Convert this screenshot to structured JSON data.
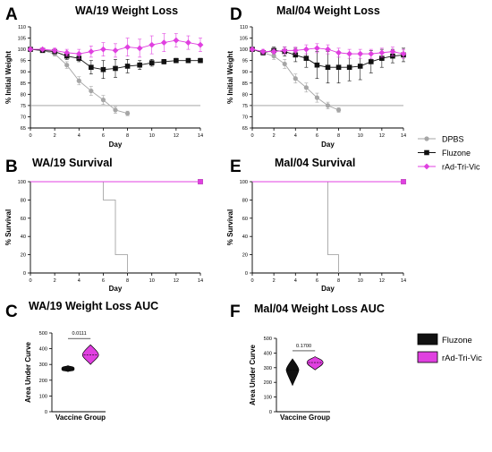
{
  "colors": {
    "dpbs": "#a6a6a6",
    "fluzone": "#111111",
    "radtrivic": "#e040e0",
    "cutoff": "#999999"
  },
  "legend_top": [
    "DPBS",
    "Fluzone",
    "rAd-Tri-Vic"
  ],
  "legend_bottom": [
    "Fluzone",
    "rAd-Tri-Vic"
  ],
  "chart_data": [
    {
      "id": "A",
      "type": "line",
      "panel_letter": "A",
      "title": "WA/19 Weight Loss",
      "xlabel": "Day",
      "ylabel": "% Initial Weight",
      "xlim": [
        0,
        14
      ],
      "ylim": [
        65,
        110
      ],
      "xticks": [
        "0",
        "2",
        "4",
        "6",
        "8",
        "10",
        "12",
        "14"
      ],
      "yticks": [
        "65",
        "70",
        "75",
        "80",
        "85",
        "90",
        "95",
        "100",
        "105",
        "110"
      ],
      "reference_line": {
        "y": 75,
        "x": [
          0,
          14
        ]
      },
      "series": [
        {
          "name": "DPBS",
          "x": [
            0,
            1,
            2,
            3,
            4,
            5,
            6,
            7,
            8
          ],
          "y": [
            100,
            99.5,
            98,
            93,
            86,
            81.5,
            77.5,
            73,
            71.5
          ],
          "err": [
            0.5,
            0.7,
            1,
            1.5,
            1.8,
            2,
            2,
            1.5,
            1
          ]
        },
        {
          "name": "Fluzone",
          "x": [
            0,
            1,
            2,
            3,
            4,
            5,
            6,
            7,
            8,
            9,
            10,
            11,
            12,
            13,
            14
          ],
          "y": [
            100,
            99.5,
            99,
            97,
            96,
            92,
            91,
            91.5,
            92.5,
            93,
            94,
            94.5,
            95,
            95,
            95
          ],
          "err": [
            0.5,
            0.5,
            1,
            1.5,
            1.5,
            3,
            4,
            4,
            3,
            2,
            1.5,
            1,
            1,
            1,
            1
          ]
        },
        {
          "name": "rAd-Tri-Vic",
          "x": [
            0,
            1,
            2,
            3,
            4,
            5,
            6,
            7,
            8,
            9,
            10,
            11,
            12,
            13,
            14
          ],
          "y": [
            100,
            100,
            99.5,
            98.5,
            98,
            99,
            100,
            99.5,
            101,
            100.5,
            102,
            103,
            104,
            103,
            102
          ],
          "err": [
            0.5,
            0.5,
            1,
            1.5,
            2,
            2.5,
            3,
            3,
            4,
            4,
            4,
            4,
            3,
            3,
            3
          ]
        }
      ]
    },
    {
      "id": "D",
      "type": "line",
      "panel_letter": "D",
      "title": "Mal/04 Weight Loss",
      "xlabel": "Day",
      "ylabel": "% Initial Weight",
      "xlim": [
        0,
        14
      ],
      "ylim": [
        65,
        110
      ],
      "xticks": [
        "0",
        "2",
        "4",
        "6",
        "8",
        "10",
        "12",
        "14"
      ],
      "yticks": [
        "65",
        "70",
        "75",
        "80",
        "85",
        "90",
        "95",
        "100",
        "105",
        "110"
      ],
      "reference_line": {
        "y": 75,
        "x": [
          0,
          14
        ]
      },
      "series": [
        {
          "name": "DPBS",
          "x": [
            0,
            1,
            2,
            3,
            4,
            5,
            6,
            7,
            8
          ],
          "y": [
            100,
            98.5,
            97,
            93.5,
            87,
            83,
            78.5,
            75,
            73
          ],
          "err": [
            0.5,
            1,
            1.5,
            2,
            2,
            2,
            2,
            1.5,
            1
          ]
        },
        {
          "name": "Fluzone",
          "x": [
            0,
            1,
            2,
            3,
            4,
            5,
            6,
            7,
            8,
            9,
            10,
            11,
            12,
            13,
            14
          ],
          "y": [
            100,
            98.5,
            99.5,
            99,
            97.5,
            96,
            93,
            92,
            92,
            92,
            92.5,
            94.5,
            96,
            97,
            97.5
          ],
          "err": [
            0.5,
            1,
            1.5,
            2,
            3,
            4,
            6,
            7,
            7,
            6,
            6,
            5,
            4,
            3,
            3
          ]
        },
        {
          "name": "rAd-Tri-Vic",
          "x": [
            0,
            1,
            2,
            3,
            4,
            5,
            6,
            7,
            8,
            9,
            10,
            11,
            12,
            13,
            14
          ],
          "y": [
            100,
            99,
            99,
            99.5,
            99.5,
            100,
            100.5,
            100,
            98.5,
            98,
            98,
            98,
            98.5,
            99,
            98
          ],
          "err": [
            0.5,
            1,
            1,
            1.5,
            1.5,
            2,
            2,
            2,
            2,
            2,
            2,
            2,
            2,
            2,
            2
          ]
        }
      ]
    },
    {
      "id": "B",
      "type": "line",
      "panel_letter": "B",
      "title": "WA/19 Survival",
      "xlabel": "Day",
      "ylabel": "% Survival",
      "xlim": [
        0,
        14
      ],
      "ylim": [
        0,
        100
      ],
      "xticks": [
        "0",
        "2",
        "4",
        "6",
        "8",
        "10",
        "12",
        "14"
      ],
      "yticks": [
        "0",
        "20",
        "40",
        "60",
        "80",
        "100"
      ],
      "series": [
        {
          "name": "DPBS",
          "step": true,
          "x": [
            0,
            6,
            7,
            8
          ],
          "y": [
            100,
            80,
            20,
            0
          ]
        },
        {
          "name": "Fluzone",
          "step": true,
          "x": [
            0,
            14
          ],
          "y": [
            100,
            100
          ]
        },
        {
          "name": "rAd-Tri-Vic",
          "step": true,
          "x": [
            0,
            14
          ],
          "y": [
            100,
            100
          ]
        }
      ]
    },
    {
      "id": "E",
      "type": "line",
      "panel_letter": "E",
      "title": "Mal/04 Survival",
      "xlabel": "Day",
      "ylabel": "% Survival",
      "xlim": [
        0,
        14
      ],
      "ylim": [
        0,
        100
      ],
      "xticks": [
        "0",
        "2",
        "4",
        "6",
        "8",
        "10",
        "12",
        "14"
      ],
      "yticks": [
        "0",
        "20",
        "40",
        "60",
        "80",
        "100"
      ],
      "series": [
        {
          "name": "DPBS",
          "step": true,
          "x": [
            0,
            7,
            8
          ],
          "y": [
            100,
            20,
            0
          ]
        },
        {
          "name": "Fluzone",
          "step": true,
          "x": [
            0,
            14
          ],
          "y": [
            100,
            100
          ]
        },
        {
          "name": "rAd-Tri-Vic",
          "step": true,
          "x": [
            0,
            14
          ],
          "y": [
            100,
            100
          ]
        }
      ]
    },
    {
      "id": "C",
      "type": "violin",
      "panel_letter": "C",
      "title": "WA/19 Weight Loss AUC",
      "xlabel": "Vaccine Group",
      "ylabel": "Area Under Curve",
      "ylim": [
        0,
        500
      ],
      "yticks": [
        "0",
        "100",
        "200",
        "300",
        "400",
        "500"
      ],
      "pvalue": "0.0111",
      "series": [
        {
          "name": "Fluzone",
          "min": 255,
          "max": 292,
          "median": 272,
          "q1": 265,
          "q3": 280
        },
        {
          "name": "rAd-Tri-Vic",
          "min": 300,
          "max": 425,
          "median": 360,
          "q1": 340,
          "q3": 378
        }
      ]
    },
    {
      "id": "F",
      "type": "violin",
      "panel_letter": "F",
      "title": "Mal/04 Weight Loss AUC",
      "xlabel": "Vaccine Group",
      "ylabel": "Area Under Curve",
      "ylim": [
        0,
        500
      ],
      "yticks": [
        "0",
        "100",
        "200",
        "300",
        "400",
        "500"
      ],
      "pvalue": "0.1700",
      "series": [
        {
          "name": "Fluzone",
          "min": 180,
          "max": 360,
          "median": 285,
          "q1": 240,
          "q3": 320
        },
        {
          "name": "rAd-Tri-Vic",
          "min": 285,
          "max": 375,
          "median": 335,
          "q1": 320,
          "q3": 350
        }
      ]
    }
  ]
}
